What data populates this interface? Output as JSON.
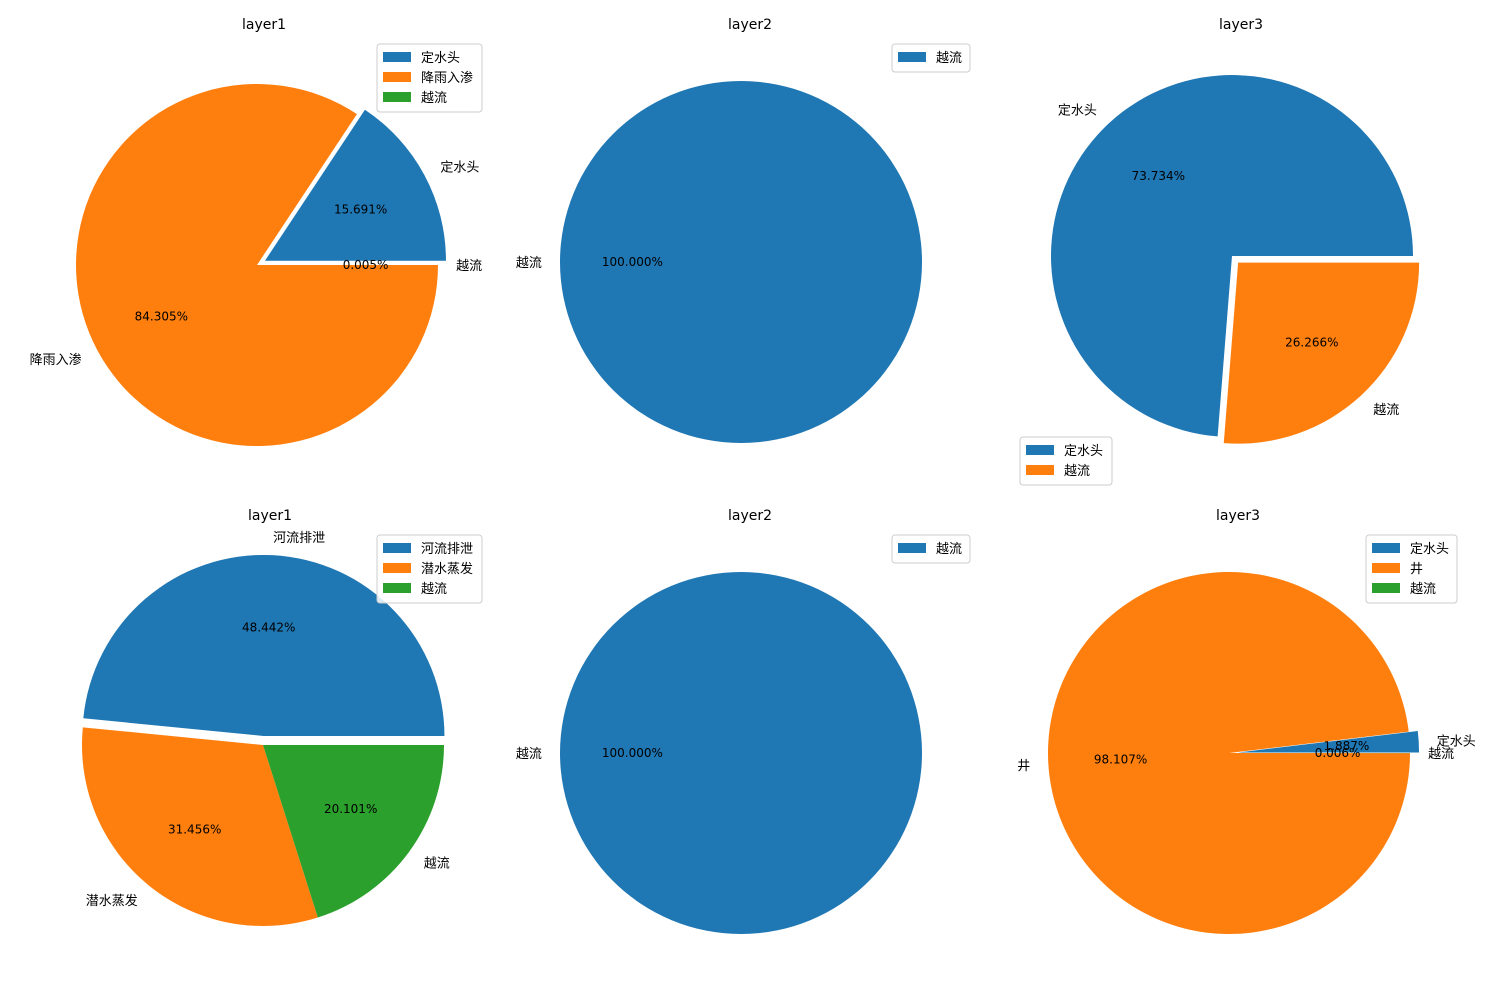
{
  "colors": [
    "#1f77b4",
    "#ff7f0e",
    "#2ca02c"
  ],
  "chart_data": [
    {
      "type": "pie",
      "title": "layer1",
      "categories": [
        "定水头",
        "降雨入渗",
        "越流"
      ],
      "values": [
        15.691,
        84.305,
        0.005
      ],
      "value_labels": [
        "15.691%",
        "84.305%",
        "0.005%"
      ],
      "legend": [
        "定水头",
        "降雨入渗",
        "越流"
      ],
      "legend_position": "upper right"
    },
    {
      "type": "pie",
      "title": "layer2",
      "categories": [
        "越流"
      ],
      "values": [
        100.0
      ],
      "value_labels": [
        "100.000%"
      ],
      "legend": [
        "越流"
      ],
      "legend_position": "upper right"
    },
    {
      "type": "pie",
      "title": "layer3",
      "categories": [
        "定水头",
        "越流"
      ],
      "values": [
        73.734,
        26.266
      ],
      "value_labels": [
        "73.734%",
        "26.266%"
      ],
      "legend": [
        "定水头",
        "越流"
      ],
      "legend_position": "lower left"
    },
    {
      "type": "pie",
      "title": "layer1",
      "categories": [
        "河流排泄",
        "潜水蒸发",
        "越流"
      ],
      "values": [
        48.442,
        31.456,
        20.101
      ],
      "value_labels": [
        "48.442%",
        "31.456%",
        "20.101%"
      ],
      "legend": [
        "河流排泄",
        "潜水蒸发",
        "越流"
      ],
      "legend_position": "upper right"
    },
    {
      "type": "pie",
      "title": "layer2",
      "categories": [
        "越流"
      ],
      "values": [
        100.0
      ],
      "value_labels": [
        "100.000%"
      ],
      "legend": [
        "越流"
      ],
      "legend_position": "upper right"
    },
    {
      "type": "pie",
      "title": "layer3",
      "categories": [
        "定水头",
        "井",
        "越流"
      ],
      "values": [
        1.887,
        98.107,
        0.006
      ],
      "value_labels": [
        "1.887%",
        "98.107%",
        "0.006%"
      ],
      "legend": [
        "定水头",
        "井",
        "越流"
      ],
      "legend_position": "upper right"
    }
  ]
}
